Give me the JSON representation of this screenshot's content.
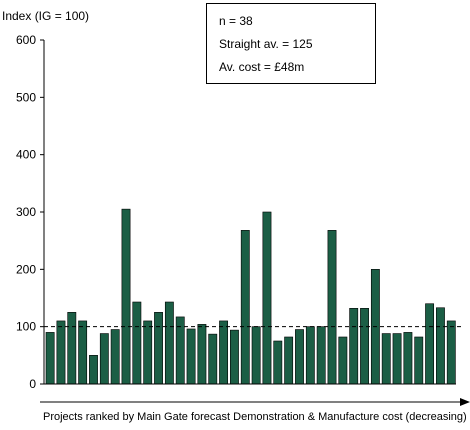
{
  "chart_data": {
    "type": "bar",
    "ylabel": "Index (IG = 100)",
    "xlabel": "Projects ranked by Main Gate forecast Demonstration & Manufacture cost (decreasing)",
    "ylim": [
      0,
      600
    ],
    "yticks": [
      0,
      100,
      200,
      300,
      400,
      500,
      600
    ],
    "reference_line": 100,
    "grid": false,
    "bar_color": "#1b5e45",
    "values": [
      90,
      110,
      125,
      110,
      50,
      88,
      95,
      305,
      143,
      110,
      125,
      143,
      117,
      96,
      104,
      87,
      110,
      94,
      268,
      100,
      300,
      75,
      82,
      95,
      100,
      100,
      268,
      82,
      132,
      132,
      200,
      88,
      88,
      90,
      82,
      140,
      133,
      110
    ]
  },
  "stats": {
    "n": "n = 38",
    "straight_av": "Straight av. = 125",
    "av_cost": "Av. cost = £48m"
  }
}
